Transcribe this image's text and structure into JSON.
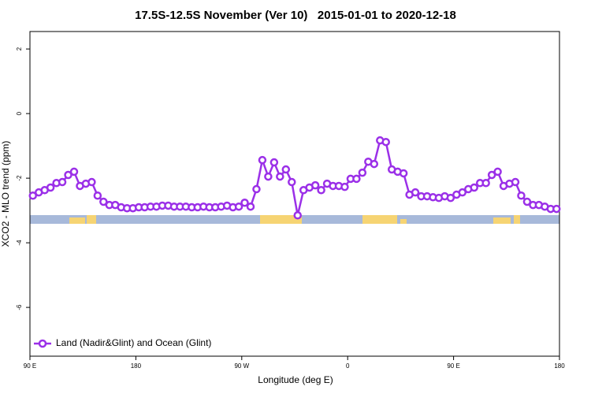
{
  "chart_data": {
    "type": "line",
    "title": "17.5S-12.5S November (Ver 10)   2015-01-01 to 2020-12-18",
    "x_label": "Longitude (deg E)",
    "y_label": "XCO2 - MLO trend (ppm)",
    "x": [
      92.5,
      97.5,
      102.5,
      107.5,
      112.5,
      117.5,
      122.5,
      127.5,
      132.5,
      137.5,
      142.5,
      147.5,
      152.5,
      157.5,
      162.5,
      167.5,
      172.5,
      177.5,
      182.5,
      187.5,
      192.5,
      197.5,
      202.5,
      207.5,
      212.5,
      217.5,
      222.5,
      227.5,
      232.5,
      237.5,
      242.5,
      247.5,
      252.5,
      257.5,
      262.5,
      267.5,
      272.5,
      277.5,
      282.5,
      287.5,
      292.5,
      297.5,
      302.5,
      307.5,
      312.5,
      317.5,
      322.5,
      327.5,
      332.5,
      337.5,
      342.5,
      347.5,
      352.5,
      357.5,
      362.5,
      367.5,
      372.5,
      377.5,
      382.5,
      387.5,
      392.5,
      397.5,
      402.5,
      407.5,
      412.5,
      417.5,
      422.5,
      427.5,
      432.5,
      437.5,
      442.5,
      447.5,
      452.5,
      457.5,
      462.5,
      467.5,
      472.5,
      477.5,
      482.5,
      487.5,
      492.5,
      497.5,
      502.5,
      507.5,
      512.5,
      517.5,
      522.5,
      527.5,
      532.5,
      537.5
    ],
    "series": [
      {
        "name": "Land (Nadir&Glint) and Ocean (Glint)",
        "color": "#9b30e8",
        "values": [
          -2.54,
          -2.44,
          -2.37,
          -2.29,
          -2.15,
          -2.12,
          -1.9,
          -1.8,
          -2.24,
          -2.17,
          -2.12,
          -2.54,
          -2.73,
          -2.83,
          -2.83,
          -2.9,
          -2.93,
          -2.93,
          -2.9,
          -2.9,
          -2.88,
          -2.88,
          -2.85,
          -2.85,
          -2.88,
          -2.88,
          -2.88,
          -2.9,
          -2.9,
          -2.88,
          -2.9,
          -2.9,
          -2.88,
          -2.85,
          -2.9,
          -2.88,
          -2.76,
          -2.88,
          -2.34,
          -1.44,
          -1.95,
          -1.51,
          -1.95,
          -1.73,
          -2.12,
          -3.15,
          -2.37,
          -2.29,
          -2.22,
          -2.37,
          -2.17,
          -2.24,
          -2.24,
          -2.27,
          -2.02,
          -2.02,
          -1.83,
          -1.49,
          -1.56,
          -0.83,
          -0.88,
          -1.73,
          -1.8,
          -1.85,
          -2.51,
          -2.44,
          -2.56,
          -2.56,
          -2.59,
          -2.61,
          -2.56,
          -2.61,
          -2.51,
          -2.44,
          -2.34,
          -2.29,
          -2.15,
          -2.15,
          -1.9,
          -1.8,
          -2.24,
          -2.17,
          -2.12,
          -2.54,
          -2.73,
          -2.83,
          -2.83,
          -2.88,
          -2.95,
          -2.95
        ]
      }
    ],
    "xlim": [
      90,
      540
    ],
    "xticks": [
      {
        "value": 90,
        "label": "90 E"
      },
      180,
      {
        "value": 270,
        "label": "90 W"
      },
      {
        "value": 360,
        "label": "0"
      },
      {
        "value": 450,
        "label": "90 E"
      },
      {
        "value": 540,
        "label": "180"
      }
    ],
    "ylim": [
      -7.51,
      2.54
    ],
    "yticks": [
      2,
      0,
      -2,
      -4,
      -6
    ],
    "legend": "bottom-left"
  }
}
